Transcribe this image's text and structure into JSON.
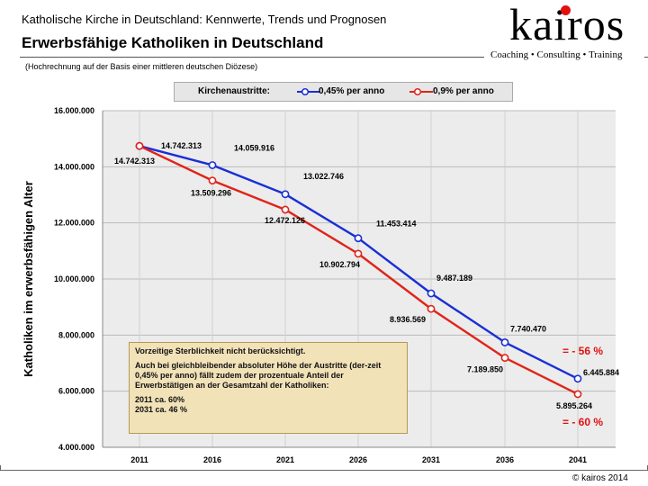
{
  "header": {
    "subtitle": "Katholische Kirche in Deutschland: Kennwerte, Trends und Prognosen",
    "title": "Erwerbsfähige Katholiken in Deutschland",
    "note": "(Hochrechnung auf der Basis einer mittleren deutschen Diözese)"
  },
  "logo": {
    "text": "kairos",
    "tagline": "Coaching • Consulting • Training"
  },
  "legend": {
    "label": "Kirchenaustritte:",
    "series1": "0,45% per anno",
    "series2": "0,9% per anno"
  },
  "annotation": {
    "line1": "Vorzeitige Sterblichkeit nicht berücksichtigt.",
    "line2": "Auch bei gleichbleibender absoluter Höhe der Austritte (der-zeit 0,45% per anno) fällt zudem der prozentuale Anteil der Erwerbstätigen an der Gesamtzahl der Katholiken:",
    "line3": "2011 ca. 60%",
    "line4": "2031 ca. 46 %"
  },
  "percent_blue": "= - 56 %",
  "percent_red": "= - 60 %",
  "copyright": "© kairos 2014",
  "colors": {
    "blue": "#1a2fd6",
    "red": "#e0241a",
    "grid": "#bbbbbb",
    "plot_bg": "#ececec"
  },
  "chart_data": {
    "type": "line",
    "title": "Erwerbsfähige Katholiken in Deutschland",
    "xlabel": "",
    "ylabel": "Katholiken im erwerbsfähigen Alter",
    "categories": [
      "2011",
      "2016",
      "2021",
      "2026",
      "2031",
      "2036",
      "2041"
    ],
    "ylim": [
      4000000,
      16000000
    ],
    "yticks": [
      "4.000.000",
      "6.000.000",
      "8.000.000",
      "10.000.000",
      "12.000.000",
      "14.000.000",
      "16.000.000"
    ],
    "ytick_values": [
      4000000,
      6000000,
      8000000,
      10000000,
      12000000,
      14000000,
      16000000
    ],
    "series": [
      {
        "name": "0,45% per anno",
        "color": "#1a2fd6",
        "values": [
          14742313,
          14059916,
          13022746,
          11453414,
          9487189,
          7740470,
          6445884
        ],
        "labels": [
          "14.742.313",
          "14.059.916",
          "13.022.746",
          "11.453.414",
          "9.487.189",
          "7.740.470",
          "6.445.884"
        ]
      },
      {
        "name": "0,9% per anno",
        "color": "#e0241a",
        "values": [
          14742313,
          13509296,
          12472126,
          10902794,
          8936569,
          7189850,
          5895264
        ],
        "labels": [
          "14.742.313",
          "13.509.296",
          "12.472.126",
          "10.902.794",
          "8.936.569",
          "7.189.850",
          "5.895.264"
        ]
      }
    ]
  }
}
